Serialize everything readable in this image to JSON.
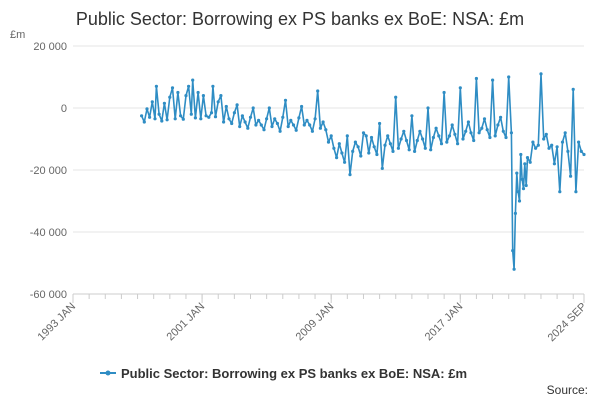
{
  "chart_data": {
    "type": "line",
    "title": "Public Sector: Borrowing ex PS banks ex BoE: NSA: £m",
    "ylabel": "£m",
    "xlabel": "",
    "ylim": [
      -60000,
      20000
    ],
    "yticks": [
      20000,
      0,
      -20000,
      -40000,
      -60000
    ],
    "ytick_labels": [
      "20 000",
      "0",
      "-20 000",
      "-40 000",
      "-60 000"
    ],
    "xlim": [
      "1993-01",
      "2024-09"
    ],
    "xticks": [
      "1993-01",
      "2001-01",
      "2009-01",
      "2017-01",
      "2024-09"
    ],
    "xtick_labels": [
      "1993 JAN",
      "2001 JAN",
      "2009 JAN",
      "2017 JAN",
      "2024 SEP"
    ],
    "grid": "horizontal",
    "legend_position": "bottom",
    "color": "#2f8dc4",
    "series": [
      {
        "name": "Public Sector: Borrowing ex PS banks ex BoE: NSA: £m",
        "points": [
          [
            "1997-04",
            -2500
          ],
          [
            "1997-06",
            -4500
          ],
          [
            "1997-08",
            -300
          ],
          [
            "1997-10",
            -3000
          ],
          [
            "1997-12",
            2000
          ],
          [
            "1998-02",
            -3500
          ],
          [
            "1998-03",
            7000
          ],
          [
            "1998-05",
            -2000
          ],
          [
            "1998-07",
            -4200
          ],
          [
            "1998-09",
            1500
          ],
          [
            "1998-11",
            -3800
          ],
          [
            "1999-01",
            3500
          ],
          [
            "1999-03",
            6500
          ],
          [
            "1999-05",
            -3500
          ],
          [
            "1999-07",
            5000
          ],
          [
            "1999-09",
            -2500
          ],
          [
            "1999-11",
            -3600
          ],
          [
            "2000-01",
            4000
          ],
          [
            "2000-03",
            7000
          ],
          [
            "2000-05",
            -2000
          ],
          [
            "2000-06",
            9000
          ],
          [
            "2000-08",
            -3200
          ],
          [
            "2000-10",
            5000
          ],
          [
            "2000-12",
            -3500
          ],
          [
            "2001-02",
            4000
          ],
          [
            "2001-04",
            -2500
          ],
          [
            "2001-06",
            -3000
          ],
          [
            "2001-08",
            -1500
          ],
          [
            "2001-09",
            7000
          ],
          [
            "2001-11",
            -2800
          ],
          [
            "2002-01",
            2000
          ],
          [
            "2002-03",
            4000
          ],
          [
            "2002-05",
            -4500
          ],
          [
            "2002-07",
            500
          ],
          [
            "2002-09",
            -3500
          ],
          [
            "2002-11",
            -5000
          ],
          [
            "2003-01",
            -1500
          ],
          [
            "2003-03",
            1000
          ],
          [
            "2003-05",
            -6000
          ],
          [
            "2003-07",
            -2500
          ],
          [
            "2003-09",
            -4500
          ],
          [
            "2003-11",
            -6500
          ],
          [
            "2004-01",
            -3000
          ],
          [
            "2004-03",
            0
          ],
          [
            "2004-05",
            -5500
          ],
          [
            "2004-07",
            -4000
          ],
          [
            "2004-09",
            -5500
          ],
          [
            "2004-11",
            -7000
          ],
          [
            "2005-01",
            -3500
          ],
          [
            "2005-03",
            0
          ],
          [
            "2005-05",
            -6000
          ],
          [
            "2005-07",
            -3500
          ],
          [
            "2005-09",
            -5000
          ],
          [
            "2005-11",
            -7500
          ],
          [
            "2006-01",
            -3000
          ],
          [
            "2006-03",
            2500
          ],
          [
            "2006-05",
            -6000
          ],
          [
            "2006-07",
            -4000
          ],
          [
            "2006-09",
            -5500
          ],
          [
            "2006-11",
            -7200
          ],
          [
            "2007-01",
            -3200
          ],
          [
            "2007-03",
            500
          ],
          [
            "2007-05",
            -5500
          ],
          [
            "2007-07",
            -4000
          ],
          [
            "2007-09",
            -5500
          ],
          [
            "2007-11",
            -7500
          ],
          [
            "2008-01",
            -3500
          ],
          [
            "2008-03",
            5500
          ],
          [
            "2008-05",
            -6500
          ],
          [
            "2008-07",
            -4500
          ],
          [
            "2008-09",
            -7000
          ],
          [
            "2008-11",
            -11000
          ],
          [
            "2009-01",
            -9000
          ],
          [
            "2009-03",
            -13000
          ],
          [
            "2009-05",
            -16000
          ],
          [
            "2009-07",
            -11500
          ],
          [
            "2009-09",
            -14500
          ],
          [
            "2009-11",
            -17500
          ],
          [
            "2010-01",
            -9000
          ],
          [
            "2010-03",
            -21500
          ],
          [
            "2010-05",
            -14000
          ],
          [
            "2010-07",
            -11000
          ],
          [
            "2010-09",
            -12500
          ],
          [
            "2010-11",
            -15500
          ],
          [
            "2011-01",
            -8000
          ],
          [
            "2011-03",
            -9000
          ],
          [
            "2011-05",
            -14500
          ],
          [
            "2011-07",
            -9500
          ],
          [
            "2011-09",
            -12500
          ],
          [
            "2011-11",
            -15000
          ],
          [
            "2012-01",
            -5000
          ],
          [
            "2012-03",
            -19500
          ],
          [
            "2012-05",
            -12000
          ],
          [
            "2012-07",
            -9000
          ],
          [
            "2012-09",
            -11500
          ],
          [
            "2012-11",
            -14000
          ],
          [
            "2013-01",
            3500
          ],
          [
            "2013-03",
            -13000
          ],
          [
            "2013-05",
            -10000
          ],
          [
            "2013-07",
            -7500
          ],
          [
            "2013-09",
            -10500
          ],
          [
            "2013-11",
            -13500
          ],
          [
            "2014-01",
            -2500
          ],
          [
            "2014-03",
            -14000
          ],
          [
            "2014-05",
            -10500
          ],
          [
            "2014-07",
            -7500
          ],
          [
            "2014-09",
            -10000
          ],
          [
            "2014-11",
            -13000
          ],
          [
            "2015-01",
            0
          ],
          [
            "2015-03",
            -13500
          ],
          [
            "2015-05",
            -9500
          ],
          [
            "2015-07",
            -6500
          ],
          [
            "2015-09",
            -9000
          ],
          [
            "2015-11",
            -11500
          ],
          [
            "2016-01",
            5000
          ],
          [
            "2016-03",
            -11000
          ],
          [
            "2016-05",
            -9000
          ],
          [
            "2016-07",
            -5500
          ],
          [
            "2016-09",
            -8500
          ],
          [
            "2016-11",
            -11500
          ],
          [
            "2017-01",
            6500
          ],
          [
            "2017-03",
            -10000
          ],
          [
            "2017-05",
            -7500
          ],
          [
            "2017-07",
            -4500
          ],
          [
            "2017-09",
            -8000
          ],
          [
            "2017-11",
            -10500
          ],
          [
            "2018-01",
            9500
          ],
          [
            "2018-03",
            -8000
          ],
          [
            "2018-05",
            -6500
          ],
          [
            "2018-07",
            -3500
          ],
          [
            "2018-09",
            -7000
          ],
          [
            "2018-11",
            -9500
          ],
          [
            "2019-01",
            9000
          ],
          [
            "2019-03",
            -9000
          ],
          [
            "2019-05",
            -5500
          ],
          [
            "2019-07",
            -3000
          ],
          [
            "2019-09",
            -7500
          ],
          [
            "2019-11",
            -9500
          ],
          [
            "2020-01",
            10000
          ],
          [
            "2020-03",
            -8000
          ],
          [
            "2020-04",
            -46000
          ],
          [
            "2020-05",
            -52000
          ],
          [
            "2020-06",
            -34000
          ],
          [
            "2020-07",
            -21000
          ],
          [
            "2020-08",
            -27000
          ],
          [
            "2020-09",
            -30000
          ],
          [
            "2020-10",
            -15000
          ],
          [
            "2020-11",
            -23000
          ],
          [
            "2020-12",
            -26000
          ],
          [
            "2021-01",
            -18000
          ],
          [
            "2021-02",
            -25000
          ],
          [
            "2021-03",
            -16000
          ],
          [
            "2021-05",
            -17500
          ],
          [
            "2021-07",
            -11000
          ],
          [
            "2021-09",
            -13000
          ],
          [
            "2021-11",
            -12000
          ],
          [
            "2022-01",
            11000
          ],
          [
            "2022-03",
            -10000
          ],
          [
            "2022-05",
            -8500
          ],
          [
            "2022-07",
            -13000
          ],
          [
            "2022-09",
            -12000
          ],
          [
            "2022-11",
            -18000
          ],
          [
            "2023-01",
            -12500
          ],
          [
            "2023-03",
            -27000
          ],
          [
            "2023-05",
            -11000
          ],
          [
            "2023-07",
            -8000
          ],
          [
            "2023-09",
            -14000
          ],
          [
            "2023-11",
            -22000
          ],
          [
            "2024-01",
            6000
          ],
          [
            "2024-03",
            -27000
          ],
          [
            "2024-05",
            -11000
          ],
          [
            "2024-07",
            -14000
          ],
          [
            "2024-09",
            -15000
          ]
        ]
      }
    ]
  },
  "source_label": "Source:"
}
